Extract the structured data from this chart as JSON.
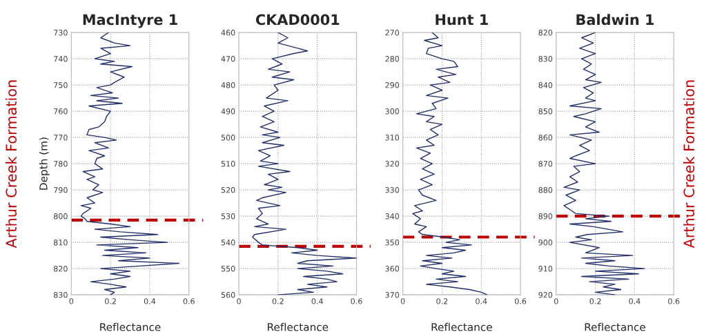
{
  "chart_data": [
    {
      "type": "line",
      "title": "MacIntyre 1",
      "xlabel": "Reflectance",
      "ylabel": "Depth (m)",
      "orientation": "horizontal",
      "xlim": [
        0,
        0.6
      ],
      "xticks": [
        0,
        0.2,
        0.4,
        0.6
      ],
      "ylim": [
        830,
        730
      ],
      "yticks": [
        730,
        740,
        750,
        760,
        770,
        780,
        790,
        800,
        810,
        820,
        830
      ],
      "grid": true,
      "annotations": [
        "Arthur Creek Formation"
      ],
      "ref_lines": [
        {
          "axis": "y",
          "value": 801.5,
          "color": "#c00000",
          "line_style": "dashed"
        }
      ],
      "series": [
        {
          "color": "#1f2d6b",
          "x": [
            730,
            732,
            734,
            735,
            736,
            738,
            740,
            741,
            742,
            743,
            745,
            747,
            749,
            750,
            751,
            753,
            754,
            755,
            756,
            757,
            758,
            760,
            762,
            764,
            766,
            767,
            769,
            770,
            771,
            772,
            774,
            775,
            777,
            778,
            780,
            782,
            783,
            785,
            786,
            788,
            790,
            791,
            793,
            795,
            796,
            797,
            799,
            800,
            801,
            802,
            803,
            804,
            805,
            806,
            807,
            808,
            809,
            810,
            811,
            812,
            813,
            814,
            815,
            816,
            817,
            818,
            819,
            820,
            821,
            822,
            823,
            824,
            825,
            826,
            827,
            828,
            829,
            830
          ],
          "values": [
            0.19,
            0.15,
            0.22,
            0.3,
            0.15,
            0.2,
            0.12,
            0.22,
            0.15,
            0.31,
            0.2,
            0.27,
            0.22,
            0.2,
            0.13,
            0.21,
            0.1,
            0.24,
            0.13,
            0.26,
            0.09,
            0.2,
            0.18,
            0.17,
            0.14,
            0.09,
            0.08,
            0.17,
            0.23,
            0.12,
            0.19,
            0.09,
            0.17,
            0.13,
            0.12,
            0.16,
            0.06,
            0.12,
            0.08,
            0.14,
            0.11,
            0.16,
            0.08,
            0.12,
            0.05,
            0.1,
            0.06,
            0.05,
            0.07,
            0.08,
            0.2,
            0.3,
            0.12,
            0.25,
            0.44,
            0.15,
            0.3,
            0.49,
            0.13,
            0.34,
            0.17,
            0.38,
            0.16,
            0.4,
            0.24,
            0.55,
            0.35,
            0.15,
            0.3,
            0.2,
            0.3,
            0.22,
            0.1,
            0.2,
            0.28,
            0.17,
            0.22,
            0.2
          ]
        }
      ]
    },
    {
      "type": "line",
      "title": "CKAD0001",
      "xlabel": "Reflectance",
      "orientation": "horizontal",
      "xlim": [
        0,
        0.6
      ],
      "xticks": [
        0,
        0.2,
        0.4,
        0.6
      ],
      "ylim": [
        560,
        460
      ],
      "yticks": [
        460,
        470,
        480,
        490,
        500,
        510,
        520,
        530,
        540,
        550,
        560
      ],
      "grid": true,
      "ref_lines": [
        {
          "axis": "y",
          "value": 541.5,
          "color": "#c00000",
          "line_style": "dashed"
        }
      ],
      "series": [
        {
          "color": "#1f2d6b",
          "x": [
            460,
            462,
            464,
            466,
            467,
            468,
            470,
            472,
            474,
            475,
            477,
            478,
            480,
            482,
            484,
            485,
            486,
            488,
            490,
            492,
            494,
            496,
            498,
            499,
            500,
            502,
            503,
            505,
            507,
            509,
            510,
            511,
            513,
            514,
            516,
            518,
            519,
            520,
            521,
            523,
            524,
            526,
            527,
            529,
            531,
            533,
            534,
            535,
            537,
            538,
            540,
            541,
            542,
            543,
            544,
            545,
            546,
            547,
            548,
            549,
            550,
            551,
            552,
            553,
            554,
            555,
            556,
            557,
            558,
            559,
            560
          ],
          "values": [
            0.2,
            0.25,
            0.2,
            0.3,
            0.35,
            0.28,
            0.17,
            0.22,
            0.15,
            0.26,
            0.17,
            0.28,
            0.18,
            0.2,
            0.16,
            0.14,
            0.25,
            0.13,
            0.18,
            0.12,
            0.18,
            0.11,
            0.2,
            0.12,
            0.21,
            0.12,
            0.23,
            0.1,
            0.16,
            0.11,
            0.2,
            0.1,
            0.26,
            0.15,
            0.2,
            0.13,
            0.22,
            0.15,
            0.24,
            0.12,
            0.09,
            0.21,
            0.1,
            0.12,
            0.09,
            0.15,
            0.08,
            0.24,
            0.08,
            0.07,
            0.1,
            0.12,
            0.3,
            0.4,
            0.27,
            0.4,
            0.6,
            0.35,
            0.3,
            0.48,
            0.3,
            0.45,
            0.53,
            0.33,
            0.45,
            0.5,
            0.35,
            0.45,
            0.3,
            0.38,
            0.2
          ]
        }
      ]
    },
    {
      "type": "line",
      "title": "Hunt 1",
      "xlabel": "Reflectance",
      "orientation": "horizontal",
      "xlim": [
        0,
        0.6
      ],
      "xticks": [
        0,
        0.2,
        0.4,
        0.6
      ],
      "ylim": [
        370,
        270
      ],
      "yticks": [
        270,
        280,
        290,
        300,
        310,
        320,
        330,
        340,
        350,
        360,
        370
      ],
      "grid": true,
      "ref_lines": [
        {
          "axis": "y",
          "value": 348,
          "color": "#c00000",
          "line_style": "dashed"
        }
      ],
      "series": [
        {
          "color": "#1f2d6b",
          "x": [
            270,
            272,
            273,
            275,
            276,
            278,
            280,
            281,
            283,
            284,
            286,
            287,
            289,
            290,
            292,
            294,
            295,
            297,
            299,
            301,
            302,
            304,
            305,
            307,
            309,
            311,
            313,
            314,
            316,
            318,
            320,
            322,
            324,
            326,
            328,
            330,
            332,
            334,
            336,
            338,
            339,
            341,
            343,
            344,
            346,
            347,
            348,
            349,
            350,
            351,
            352,
            353,
            354,
            355,
            356,
            357,
            358,
            359,
            360,
            361,
            362,
            363,
            364,
            365,
            366,
            367,
            368,
            369,
            370
          ],
          "values": [
            0.15,
            0.18,
            0.11,
            0.2,
            0.13,
            0.12,
            0.2,
            0.26,
            0.28,
            0.17,
            0.27,
            0.18,
            0.24,
            0.14,
            0.2,
            0.12,
            0.23,
            0.15,
            0.17,
            0.07,
            0.16,
            0.12,
            0.2,
            0.14,
            0.18,
            0.12,
            0.16,
            0.07,
            0.14,
            0.09,
            0.15,
            0.1,
            0.16,
            0.09,
            0.15,
            0.08,
            0.1,
            0.17,
            0.06,
            0.1,
            0.05,
            0.09,
            0.06,
            0.12,
            0.08,
            0.1,
            0.21,
            0.29,
            0.22,
            0.35,
            0.2,
            0.32,
            0.26,
            0.12,
            0.25,
            0.1,
            0.2,
            0.09,
            0.17,
            0.26,
            0.2,
            0.32,
            0.17,
            0.28,
            0.12,
            0.24,
            0.34,
            0.4,
            0.43
          ]
        }
      ]
    },
    {
      "type": "line",
      "title": "Baldwin 1",
      "xlabel": "Reflectance",
      "orientation": "horizontal",
      "xlim": [
        0,
        0.6
      ],
      "xticks": [
        0,
        0.2,
        0.4,
        0.6
      ],
      "ylim": [
        920,
        820
      ],
      "yticks": [
        820,
        830,
        840,
        850,
        860,
        870,
        880,
        890,
        900,
        910,
        920
      ],
      "grid": true,
      "annotations": [
        "Arthur Creek Formation"
      ],
      "ref_lines": [
        {
          "axis": "y",
          "value": 890,
          "color": "#c00000",
          "line_style": "dashed"
        }
      ],
      "series": [
        {
          "color": "#1f2d6b",
          "x": [
            820,
            822,
            824,
            826,
            828,
            830,
            832,
            834,
            836,
            838,
            839,
            841,
            843,
            845,
            846,
            848,
            849,
            851,
            852,
            854,
            856,
            858,
            859,
            861,
            863,
            865,
            867,
            868,
            870,
            871,
            873,
            875,
            877,
            879,
            880,
            882,
            884,
            886,
            888,
            889,
            890,
            891,
            892,
            893,
            894,
            896,
            897,
            898,
            899,
            900,
            902,
            904,
            905,
            906,
            907,
            908,
            909,
            910,
            911,
            912,
            913,
            914,
            915,
            916,
            917,
            918,
            919,
            920
          ],
          "values": [
            0.2,
            0.13,
            0.19,
            0.12,
            0.2,
            0.13,
            0.18,
            0.14,
            0.2,
            0.15,
            0.23,
            0.14,
            0.19,
            0.15,
            0.2,
            0.07,
            0.23,
            0.15,
            0.09,
            0.2,
            0.15,
            0.22,
            0.07,
            0.18,
            0.12,
            0.17,
            0.1,
            0.07,
            0.2,
            0.09,
            0.12,
            0.07,
            0.11,
            0.04,
            0.12,
            0.05,
            0.1,
            0.04,
            0.08,
            0.1,
            0.27,
            0.15,
            0.28,
            0.07,
            0.19,
            0.34,
            0.16,
            0.1,
            0.18,
            0.07,
            0.22,
            0.15,
            0.39,
            0.13,
            0.3,
            0.15,
            0.27,
            0.45,
            0.2,
            0.42,
            0.13,
            0.37,
            0.17,
            0.3,
            0.24,
            0.33,
            0.2,
            0.3
          ]
        }
      ]
    }
  ]
}
